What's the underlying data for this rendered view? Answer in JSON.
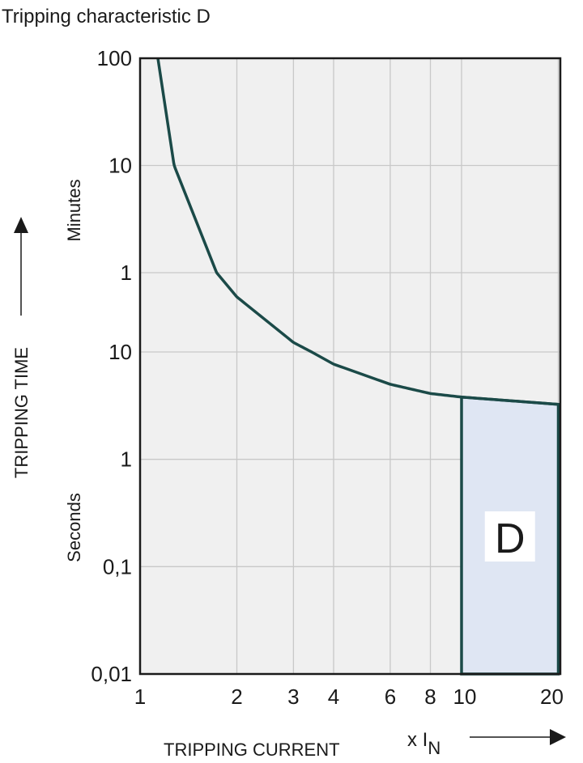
{
  "chart_data": {
    "type": "line",
    "title": "Tripping characteristic D",
    "xlabel": "TRIPPING CURRENT",
    "xunit_prefix": "x I",
    "xunit_sub": "N",
    "ylabel": "TRIPPING TIME",
    "ylabel_minutes": "Minutes",
    "ylabel_seconds": "Seconds",
    "x_scale": "log",
    "y_scale": "log",
    "xlim": [
      1,
      20
    ],
    "ylim_seconds": [
      0.01,
      6000
    ],
    "grid": true,
    "x_ticks": [
      {
        "value": 1,
        "label": "1"
      },
      {
        "value": 2,
        "label": "2"
      },
      {
        "value": 3,
        "label": "3"
      },
      {
        "value": 4,
        "label": "4"
      },
      {
        "value": 6,
        "label": "6"
      },
      {
        "value": 8,
        "label": "8"
      },
      {
        "value": 10,
        "label": "10"
      },
      {
        "value": 20,
        "label": "20"
      }
    ],
    "y_ticks": [
      {
        "seconds": 6000,
        "label": "100",
        "unit": "min"
      },
      {
        "seconds": 600,
        "label": "10",
        "unit": "min"
      },
      {
        "seconds": 60,
        "label": "1",
        "unit": "min"
      },
      {
        "seconds": 10,
        "label": "10",
        "unit": "s"
      },
      {
        "seconds": 1,
        "label": "1",
        "unit": "s"
      },
      {
        "seconds": 0.1,
        "label": "0,1",
        "unit": "s"
      },
      {
        "seconds": 0.01,
        "label": "0,01",
        "unit": "s"
      }
    ],
    "series": [
      {
        "x": [
          1.136,
          1.276,
          1.73,
          2,
          3,
          4,
          6,
          8,
          10,
          20
        ],
        "y_seconds": [
          6000,
          600,
          60,
          34.7,
          12.4,
          7.7,
          5.0,
          4.1,
          3.8,
          3.25
        ]
      }
    ],
    "region": {
      "label": "D",
      "x_range": [
        10,
        20
      ],
      "y_bottom_seconds": 0.01
    },
    "colors": {
      "curve": "#1b4a48",
      "region_fill": "#dfe6f3",
      "plot_bg": "#f0f0f0",
      "grid": "#c8c8c8"
    }
  }
}
